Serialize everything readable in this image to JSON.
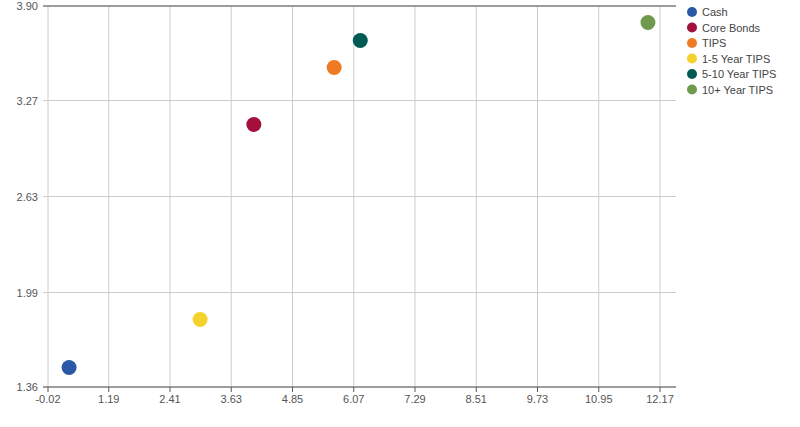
{
  "chart_data": {
    "type": "scatter",
    "series": [
      {
        "name": "Cash",
        "color": "#2a58a6",
        "x": [
          0.4
        ],
        "values": [
          1.49
        ]
      },
      {
        "name": "Core Bonds",
        "color": "#a3103c",
        "x": [
          4.08
        ],
        "values": [
          3.11
        ]
      },
      {
        "name": "TIPS",
        "color": "#ee7b23",
        "x": [
          5.68
        ],
        "values": [
          3.49
        ]
      },
      {
        "name": "1-5 Year TIPS",
        "color": "#f4d22b",
        "x": [
          3.01
        ],
        "values": [
          1.81
        ]
      },
      {
        "name": "5-10 Year TIPS",
        "color": "#005a55",
        "x": [
          6.2
        ],
        "values": [
          3.67
        ]
      },
      {
        "name": "10+ Year TIPS",
        "color": "#6f9a4e",
        "x": [
          11.93
        ],
        "values": [
          3.79
        ]
      }
    ],
    "xlim": [
      -0.02,
      12.17
    ],
    "xticks": [
      -0.02,
      1.19,
      2.41,
      3.63,
      4.85,
      6.07,
      7.29,
      8.51,
      9.73,
      10.95,
      12.17
    ],
    "ylim": [
      1.36,
      3.9
    ],
    "yticks": [
      1.36,
      1.99,
      2.63,
      3.27,
      {
        "value": 3.9,
        "label": "3.90"
      }
    ],
    "grid": true,
    "legend": "top-right",
    "marker": "circle"
  }
}
